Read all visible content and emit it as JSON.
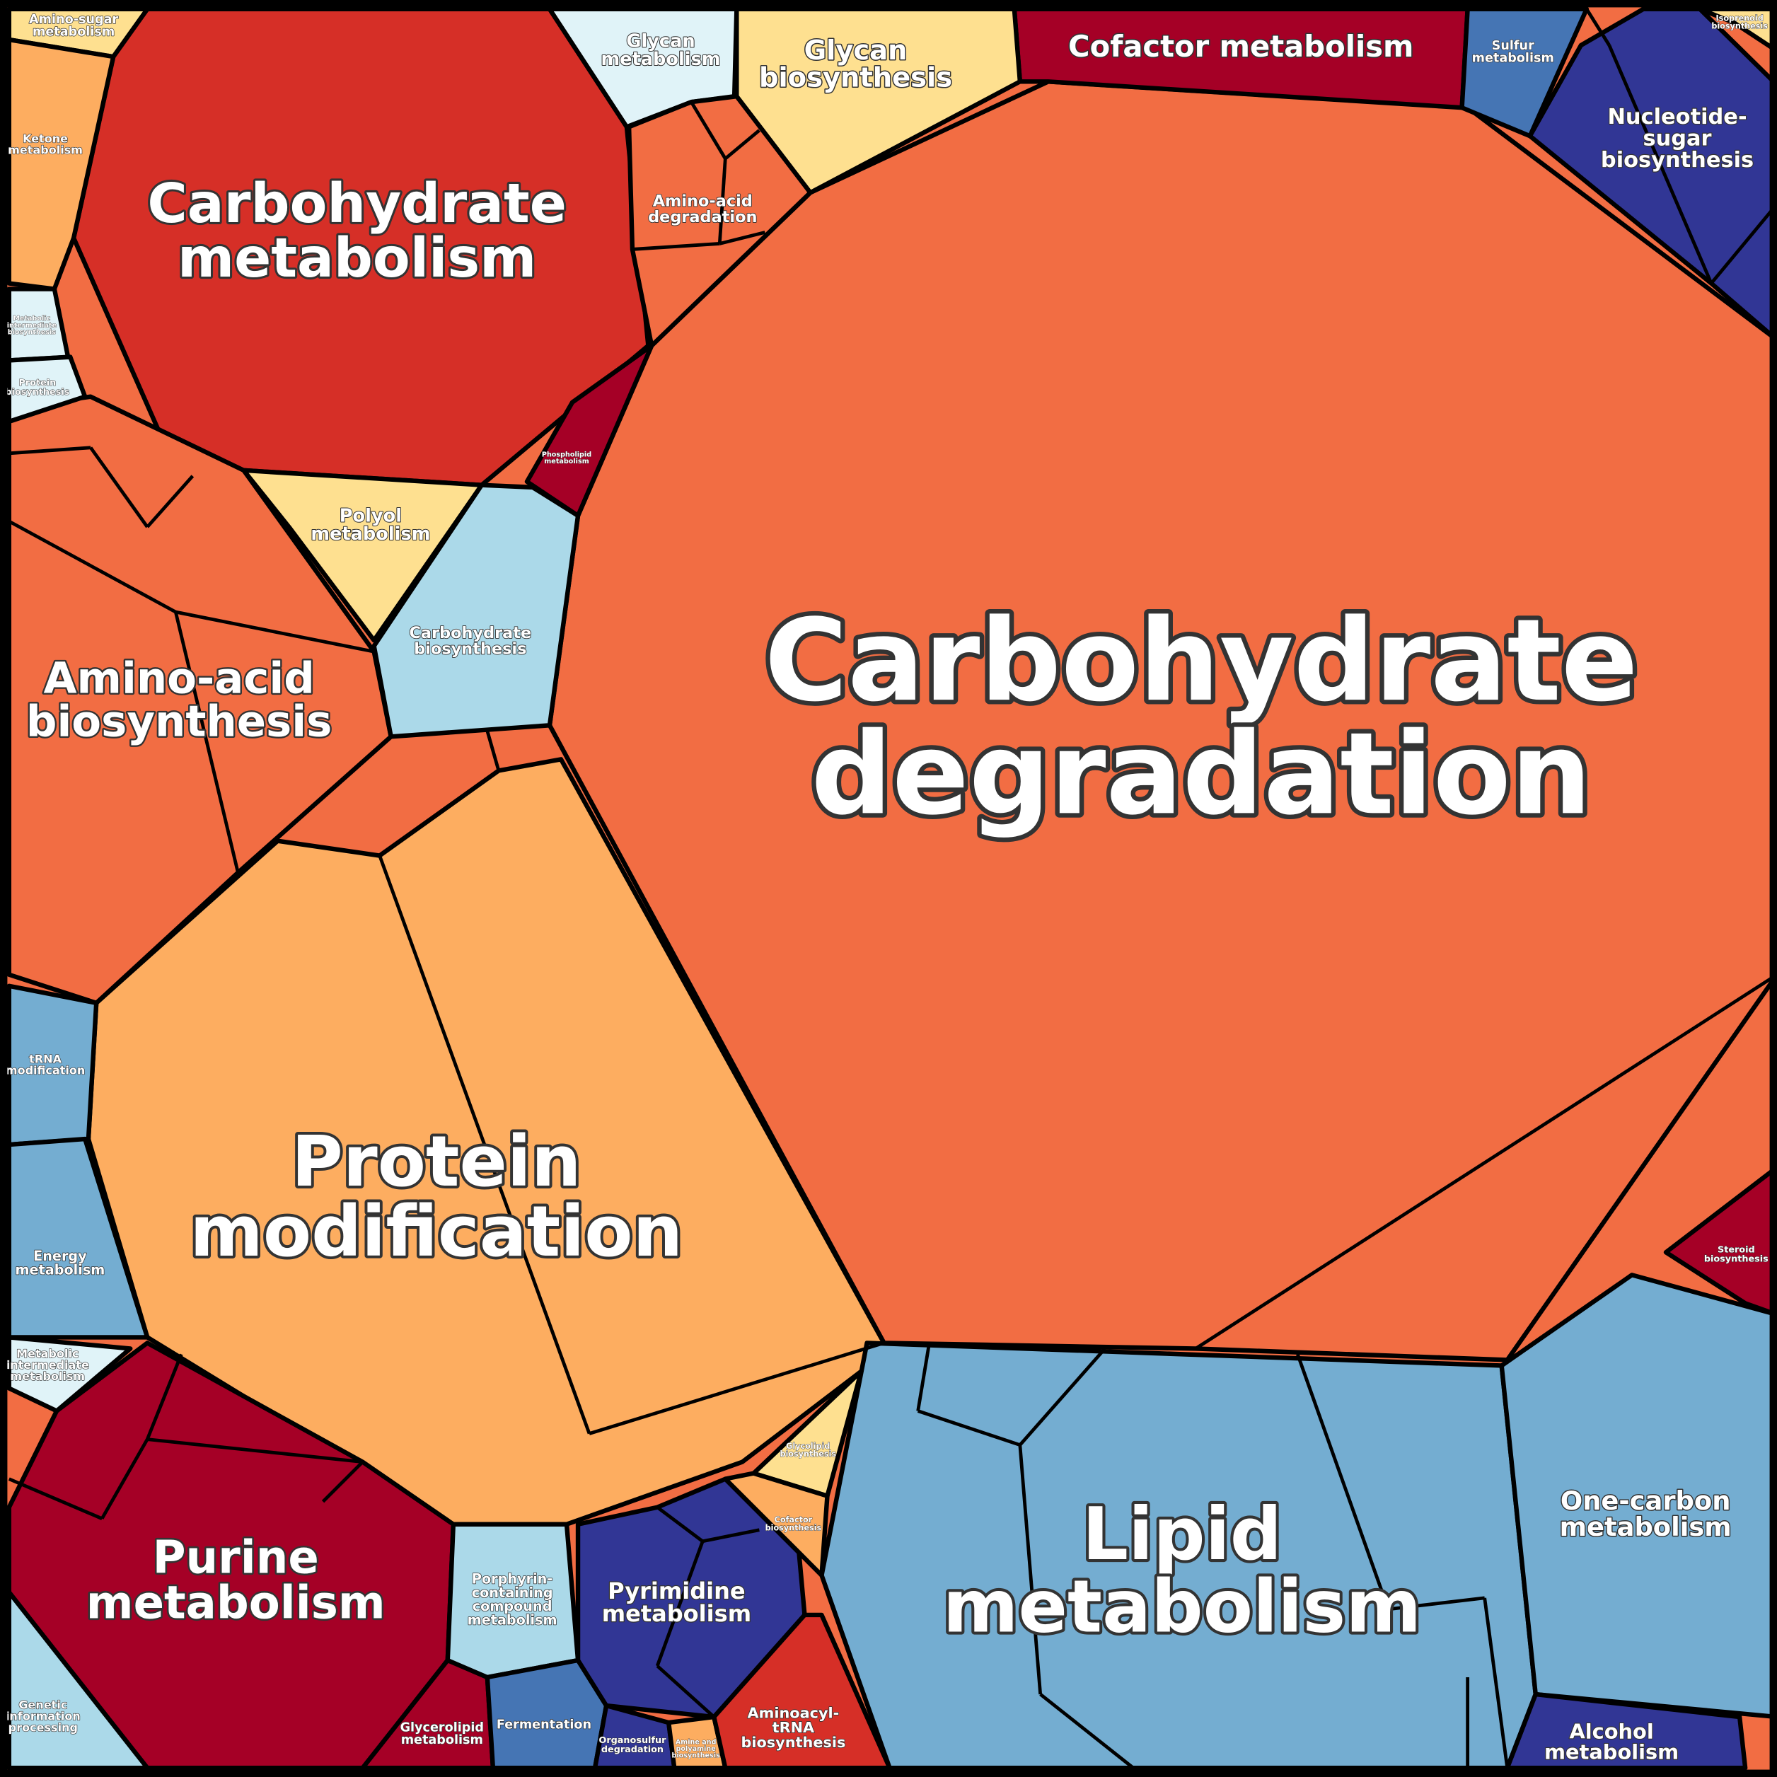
{
  "cells": [
    {
      "lines": [
        "Carbohydrate",
        "degradation"
      ],
      "color": "#f26d43"
    },
    {
      "lines": [
        "Carbohydrate",
        "metabolism"
      ],
      "color": "#d62f27"
    },
    {
      "lines": [
        "Protein",
        "modification"
      ],
      "color": "#fdad60"
    },
    {
      "lines": [
        "Lipid",
        "metabolism"
      ],
      "color": "#74add1"
    },
    {
      "lines": [
        "Purine",
        "metabolism"
      ],
      "color": "#a50026"
    },
    {
      "lines": [
        "Amino-acid",
        "biosynthesis"
      ],
      "color": "#f26d43"
    },
    {
      "lines": [
        "Cofactor metabolism"
      ],
      "color": "#a50026"
    },
    {
      "lines": [
        "Glycan",
        "biosynthesis"
      ],
      "color": "#fee090"
    },
    {
      "lines": [
        "Glycan",
        "metabolism"
      ],
      "color": "#e0f3f8"
    },
    {
      "lines": [
        "Nucleotide-",
        "sugar",
        "biosynthesis"
      ],
      "color": "#313695"
    },
    {
      "lines": [
        "Sulfur",
        "metabolism"
      ],
      "color": "#4575b4"
    },
    {
      "lines": [
        "Isoprenoid",
        "biosynthesis"
      ],
      "color": "#fee090"
    },
    {
      "lines": [
        "Amino-sugar",
        "metabolism"
      ],
      "color": "#fee090"
    },
    {
      "lines": [
        "Ketone",
        "metabolism"
      ],
      "color": "#fdad60"
    },
    {
      "lines": [
        "Metabolic",
        "intermediate",
        "biosynthesis"
      ],
      "color": "#e0f3f8"
    },
    {
      "lines": [
        "Protein",
        "biosynthesis"
      ],
      "color": "#e0f3f8"
    },
    {
      "lines": [
        "Amino-acid",
        "degradation"
      ],
      "color": "#f26d43"
    },
    {
      "lines": [
        "Polyol",
        "metabolism"
      ],
      "color": "#fee090"
    },
    {
      "lines": [
        "Carbohydrate",
        "biosynthesis"
      ],
      "color": "#abd9e9"
    },
    {
      "lines": [
        "Phospholipid",
        "metabolism"
      ],
      "color": "#a50026"
    },
    {
      "lines": [
        "tRNA",
        "modification"
      ],
      "color": "#74add1"
    },
    {
      "lines": [
        "Energy",
        "metabolism"
      ],
      "color": "#74add1"
    },
    {
      "lines": [
        "Metabolic",
        "intermediate",
        "metabolism"
      ],
      "color": "#e0f3f8"
    },
    {
      "lines": [
        "Genetic",
        "information",
        "processing"
      ],
      "color": "#abd9e9"
    },
    {
      "lines": [
        "Glycerolipid",
        "metabolism"
      ],
      "color": "#a50026"
    },
    {
      "lines": [
        "Porphyrin-",
        "containing",
        "compound",
        "metabolism"
      ],
      "color": "#abd9e9"
    },
    {
      "lines": [
        "Fermentation"
      ],
      "color": "#4575b4"
    },
    {
      "lines": [
        "Pyrimidine",
        "metabolism"
      ],
      "color": "#313695"
    },
    {
      "lines": [
        "Organosulfur",
        "degradation"
      ],
      "color": "#313695"
    },
    {
      "lines": [
        "Amine and",
        "polyamine",
        "biosynthesis"
      ],
      "color": "#fdad60"
    },
    {
      "lines": [
        "Aminoacyl-",
        "tRNA",
        "biosynthesis"
      ],
      "color": "#d62f27"
    },
    {
      "lines": [
        "Glycolipid",
        "biosynthesis"
      ],
      "color": "#fee090"
    },
    {
      "lines": [
        "Cofactor",
        "biosynthesis"
      ],
      "color": "#fdad60"
    },
    {
      "lines": [
        "One-carbon",
        "metabolism"
      ],
      "color": "#74add1"
    },
    {
      "lines": [
        "Alcohol",
        "metabolism"
      ],
      "color": "#313695"
    },
    {
      "lines": [
        "Steroid",
        "biosynthesis"
      ],
      "color": "#a50026"
    }
  ]
}
